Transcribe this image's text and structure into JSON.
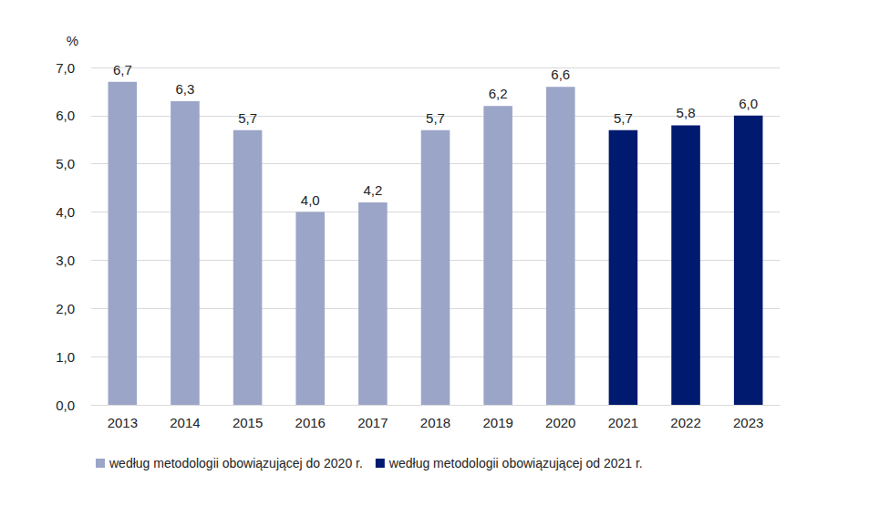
{
  "chart_data": {
    "type": "bar",
    "y_label": "%",
    "categories": [
      "2013",
      "2014",
      "2015",
      "2016",
      "2017",
      "2018",
      "2019",
      "2020",
      "2021",
      "2022",
      "2023"
    ],
    "series": [
      {
        "name": "według metodologii obowiązującej do 2020 r.",
        "color": "#9BA5C8",
        "values": [
          6.7,
          6.3,
          5.7,
          4.0,
          4.2,
          5.7,
          6.2,
          6.6,
          null,
          null,
          null
        ],
        "value_labels": [
          "6,7",
          "6,3",
          "5,7",
          "4,0",
          "4,2",
          "5,7",
          "6,2",
          "6,6",
          null,
          null,
          null
        ]
      },
      {
        "name": "według metodologii obowiązującej od 2021 r.",
        "color": "#001A70",
        "values": [
          null,
          null,
          null,
          null,
          null,
          null,
          null,
          null,
          5.7,
          5.8,
          6.0
        ],
        "value_labels": [
          null,
          null,
          null,
          null,
          null,
          null,
          null,
          null,
          "5,7",
          "5,8",
          "6,0"
        ]
      }
    ],
    "ylim": [
      0,
      7
    ],
    "yticks": [
      {
        "value": 0,
        "label": "0,0"
      },
      {
        "value": 1,
        "label": "1,0"
      },
      {
        "value": 2,
        "label": "2,0"
      },
      {
        "value": 3,
        "label": "3,0"
      },
      {
        "value": 4,
        "label": "4,0"
      },
      {
        "value": 5,
        "label": "5,0"
      },
      {
        "value": 6,
        "label": "6,0"
      },
      {
        "value": 7,
        "label": "7,0"
      }
    ],
    "grid": true,
    "legend": "bottom",
    "data_labels": true
  }
}
